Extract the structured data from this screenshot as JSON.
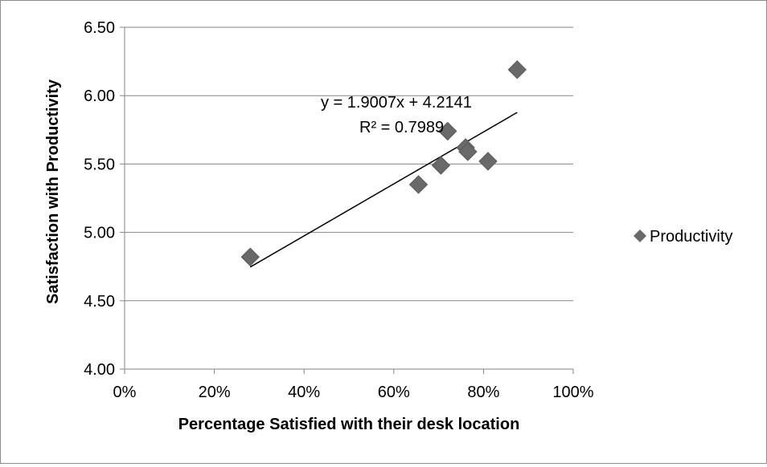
{
  "chart_data": {
    "type": "scatter",
    "title": "",
    "xlabel": "Percentage Satisfied with their desk location",
    "ylabel": "Satisfaction with Productivity",
    "xlim": [
      0,
      1
    ],
    "ylim": [
      4.0,
      6.5
    ],
    "x_ticks": [
      "0%",
      "20%",
      "40%",
      "60%",
      "80%",
      "100%"
    ],
    "y_ticks": [
      "4.00",
      "4.50",
      "5.00",
      "5.50",
      "6.00",
      "6.50"
    ],
    "grid": "horizontal",
    "legend_position": "right",
    "series": [
      {
        "name": "Productivity",
        "color": "#696969",
        "marker": "diamond",
        "points": [
          {
            "x": 0.28,
            "y": 4.82
          },
          {
            "x": 0.655,
            "y": 5.35
          },
          {
            "x": 0.705,
            "y": 5.49
          },
          {
            "x": 0.72,
            "y": 5.74
          },
          {
            "x": 0.76,
            "y": 5.62
          },
          {
            "x": 0.765,
            "y": 5.59
          },
          {
            "x": 0.81,
            "y": 5.52
          },
          {
            "x": 0.875,
            "y": 6.19
          }
        ]
      }
    ],
    "trendline": {
      "type": "linear",
      "color": "#000000",
      "slope": 1.9007,
      "intercept": 4.2141,
      "x_range": [
        0.28,
        0.875
      ],
      "equation_label": "y = 1.9007x + 4.2141",
      "r2_label": "R² = 0.7989"
    }
  }
}
